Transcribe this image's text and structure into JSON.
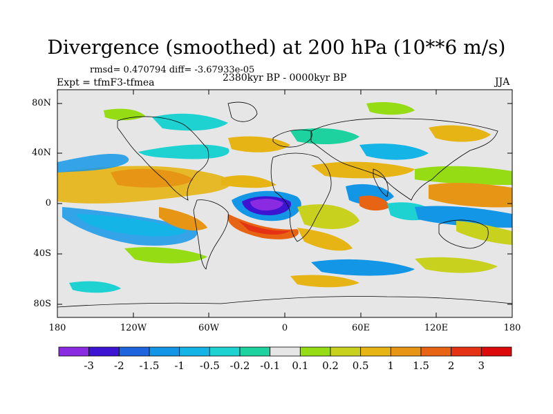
{
  "title": "Divergence (smoothed) at 200 hPa (10**6 m/s)",
  "stats": "rmsd= 0.470794 diff= -3.67933e-05",
  "experiment": "Expt = tfmF3-tfmea",
  "period": "2380kyr BP - 0000kyr BP",
  "season": "JJA",
  "map": {
    "lat_ticks": [
      "80N",
      "40N",
      "0",
      "40S",
      "80S"
    ],
    "lon_ticks": [
      "180",
      "120W",
      "60W",
      "0",
      "60E",
      "120E",
      "180"
    ]
  },
  "colorbar": {
    "labels": [
      "-3",
      "-2",
      "-1.5",
      "-1",
      "-0.5",
      "-0.2",
      "-0.1",
      "0.1",
      "0.2",
      "0.5",
      "1",
      "1.5",
      "2",
      "3"
    ],
    "colors": [
      "#8a2be2",
      "#3c14d2",
      "#1e64dc",
      "#1496e6",
      "#14b4e6",
      "#1ed2d2",
      "#1ed2a0",
      "#e6e6e6",
      "#96dc14",
      "#c8d21e",
      "#e6b414",
      "#e69614",
      "#e66414",
      "#e63214",
      "#dc0a0a"
    ]
  }
}
